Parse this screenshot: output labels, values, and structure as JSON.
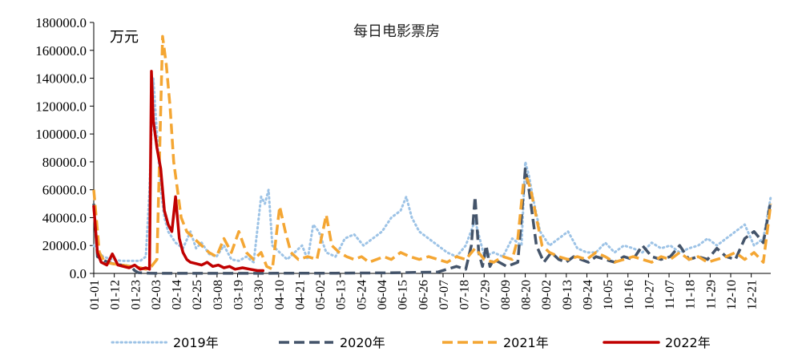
{
  "chart_data": {
    "type": "line",
    "title": "每日电影票房",
    "unit_label": "万元",
    "ylim": [
      0,
      180000
    ],
    "y_ticks": [
      "0.0",
      "20000.0",
      "40000.0",
      "60000.0",
      "80000.0",
      "100000.0",
      "120000.0",
      "140000.0",
      "160000.0",
      "180000.0"
    ],
    "x_ticks": [
      "01-01",
      "01-12",
      "01-23",
      "02-03",
      "02-14",
      "02-25",
      "03-08",
      "03-19",
      "03-30",
      "04-10",
      "04-21",
      "05-02",
      "05-13",
      "05-24",
      "06-04",
      "06-15",
      "06-26",
      "07-07",
      "07-18",
      "07-29",
      "08-09",
      "08-20",
      "09-02",
      "09-13",
      "09-24",
      "10-05",
      "10-16",
      "10-27",
      "11-07",
      "11-18",
      "11-29",
      "12-10",
      "12-21"
    ],
    "legend_position": "bottom",
    "series": [
      {
        "name": "2019年",
        "color": "#9dc3e6",
        "style": "dotted",
        "points": [
          [
            0,
            20000
          ],
          [
            5,
            12000
          ],
          [
            10,
            10000
          ],
          [
            15,
            9000
          ],
          [
            20,
            9000
          ],
          [
            25,
            9000
          ],
          [
            28,
            12000
          ],
          [
            30,
            60000
          ],
          [
            32,
            140000
          ],
          [
            34,
            100000
          ],
          [
            36,
            60000
          ],
          [
            38,
            40000
          ],
          [
            40,
            30000
          ],
          [
            44,
            22000
          ],
          [
            48,
            18000
          ],
          [
            52,
            30000
          ],
          [
            55,
            18000
          ],
          [
            58,
            22000
          ],
          [
            62,
            14000
          ],
          [
            66,
            12000
          ],
          [
            70,
            20000
          ],
          [
            74,
            10000
          ],
          [
            78,
            9000
          ],
          [
            82,
            12000
          ],
          [
            86,
            8000
          ],
          [
            90,
            55000
          ],
          [
            92,
            50000
          ],
          [
            94,
            60000
          ],
          [
            96,
            20000
          ],
          [
            100,
            15000
          ],
          [
            104,
            10000
          ],
          [
            108,
            15000
          ],
          [
            112,
            20000
          ],
          [
            115,
            10000
          ],
          [
            118,
            35000
          ],
          [
            121,
            30000
          ],
          [
            125,
            15000
          ],
          [
            130,
            12000
          ],
          [
            135,
            25000
          ],
          [
            140,
            28000
          ],
          [
            145,
            20000
          ],
          [
            150,
            25000
          ],
          [
            155,
            30000
          ],
          [
            160,
            40000
          ],
          [
            165,
            45000
          ],
          [
            168,
            55000
          ],
          [
            171,
            40000
          ],
          [
            175,
            30000
          ],
          [
            180,
            25000
          ],
          [
            185,
            20000
          ],
          [
            190,
            15000
          ],
          [
            195,
            12000
          ],
          [
            200,
            20000
          ],
          [
            205,
            38000
          ],
          [
            210,
            12000
          ],
          [
            215,
            15000
          ],
          [
            220,
            12000
          ],
          [
            225,
            25000
          ],
          [
            230,
            20000
          ],
          [
            232,
            80000
          ],
          [
            234,
            70000
          ],
          [
            236,
            55000
          ],
          [
            240,
            30000
          ],
          [
            245,
            20000
          ],
          [
            250,
            25000
          ],
          [
            255,
            30000
          ],
          [
            260,
            18000
          ],
          [
            265,
            15000
          ],
          [
            270,
            15000
          ],
          [
            275,
            22000
          ],
          [
            280,
            15000
          ],
          [
            285,
            20000
          ],
          [
            290,
            18000
          ],
          [
            295,
            15000
          ],
          [
            300,
            22000
          ],
          [
            305,
            18000
          ],
          [
            310,
            20000
          ],
          [
            315,
            15000
          ],
          [
            320,
            18000
          ],
          [
            325,
            20000
          ],
          [
            330,
            25000
          ],
          [
            335,
            20000
          ],
          [
            340,
            25000
          ],
          [
            345,
            30000
          ],
          [
            350,
            35000
          ],
          [
            355,
            20000
          ],
          [
            360,
            25000
          ],
          [
            364,
            55000
          ]
        ]
      },
      {
        "name": "2020年",
        "color": "#44546a",
        "style": "dashed",
        "points": [
          [
            0,
            50000
          ],
          [
            2,
            12000
          ],
          [
            6,
            9000
          ],
          [
            10,
            7000
          ],
          [
            15,
            6000
          ],
          [
            20,
            5000
          ],
          [
            22,
            2000
          ],
          [
            24,
            500
          ],
          [
            30,
            100
          ],
          [
            60,
            50
          ],
          [
            100,
            100
          ],
          [
            130,
            200
          ],
          [
            160,
            400
          ],
          [
            185,
            1000
          ],
          [
            190,
            3000
          ],
          [
            195,
            5000
          ],
          [
            200,
            3000
          ],
          [
            203,
            20000
          ],
          [
            205,
            55000
          ],
          [
            207,
            15000
          ],
          [
            209,
            5000
          ],
          [
            211,
            20000
          ],
          [
            213,
            5000
          ],
          [
            215,
            10000
          ],
          [
            218,
            8000
          ],
          [
            222,
            5000
          ],
          [
            228,
            8000
          ],
          [
            232,
            75000
          ],
          [
            234,
            60000
          ],
          [
            236,
            40000
          ],
          [
            238,
            20000
          ],
          [
            242,
            8000
          ],
          [
            246,
            15000
          ],
          [
            250,
            10000
          ],
          [
            254,
            8000
          ],
          [
            258,
            12000
          ],
          [
            262,
            10000
          ],
          [
            266,
            8000
          ],
          [
            270,
            12000
          ],
          [
            275,
            10000
          ],
          [
            280,
            8000
          ],
          [
            285,
            12000
          ],
          [
            290,
            10000
          ],
          [
            295,
            20000
          ],
          [
            300,
            12000
          ],
          [
            305,
            10000
          ],
          [
            310,
            12000
          ],
          [
            315,
            20000
          ],
          [
            320,
            10000
          ],
          [
            325,
            12000
          ],
          [
            330,
            10000
          ],
          [
            335,
            18000
          ],
          [
            340,
            12000
          ],
          [
            345,
            10000
          ],
          [
            350,
            25000
          ],
          [
            355,
            30000
          ],
          [
            360,
            22000
          ],
          [
            364,
            52000
          ]
        ]
      },
      {
        "name": "2021年",
        "color": "#f4a633",
        "style": "dashed",
        "points": [
          [
            0,
            60000
          ],
          [
            3,
            15000
          ],
          [
            6,
            8000
          ],
          [
            10,
            7000
          ],
          [
            15,
            6000
          ],
          [
            20,
            5000
          ],
          [
            25,
            4000
          ],
          [
            28,
            3000
          ],
          [
            31,
            5000
          ],
          [
            34,
            10000
          ],
          [
            37,
            170000
          ],
          [
            39,
            150000
          ],
          [
            41,
            120000
          ],
          [
            43,
            80000
          ],
          [
            45,
            60000
          ],
          [
            47,
            40000
          ],
          [
            50,
            30000
          ],
          [
            54,
            25000
          ],
          [
            58,
            20000
          ],
          [
            62,
            15000
          ],
          [
            66,
            12000
          ],
          [
            70,
            25000
          ],
          [
            74,
            15000
          ],
          [
            78,
            30000
          ],
          [
            82,
            15000
          ],
          [
            86,
            10000
          ],
          [
            90,
            15000
          ],
          [
            93,
            5000
          ],
          [
            96,
            3000
          ],
          [
            100,
            48000
          ],
          [
            103,
            30000
          ],
          [
            106,
            15000
          ],
          [
            110,
            10000
          ],
          [
            115,
            12000
          ],
          [
            120,
            10000
          ],
          [
            125,
            42000
          ],
          [
            128,
            20000
          ],
          [
            132,
            15000
          ],
          [
            136,
            12000
          ],
          [
            140,
            10000
          ],
          [
            144,
            12000
          ],
          [
            148,
            8000
          ],
          [
            152,
            10000
          ],
          [
            156,
            12000
          ],
          [
            160,
            10000
          ],
          [
            165,
            15000
          ],
          [
            170,
            12000
          ],
          [
            175,
            10000
          ],
          [
            180,
            12000
          ],
          [
            185,
            10000
          ],
          [
            190,
            8000
          ],
          [
            195,
            12000
          ],
          [
            200,
            10000
          ],
          [
            205,
            18000
          ],
          [
            210,
            10000
          ],
          [
            215,
            8000
          ],
          [
            220,
            12000
          ],
          [
            225,
            10000
          ],
          [
            228,
            25000
          ],
          [
            231,
            65000
          ],
          [
            233,
            68000
          ],
          [
            235,
            60000
          ],
          [
            238,
            40000
          ],
          [
            241,
            20000
          ],
          [
            245,
            15000
          ],
          [
            250,
            12000
          ],
          [
            255,
            10000
          ],
          [
            260,
            12000
          ],
          [
            265,
            10000
          ],
          [
            270,
            15000
          ],
          [
            275,
            12000
          ],
          [
            280,
            8000
          ],
          [
            285,
            10000
          ],
          [
            290,
            12000
          ],
          [
            295,
            10000
          ],
          [
            300,
            8000
          ],
          [
            305,
            12000
          ],
          [
            310,
            10000
          ],
          [
            315,
            15000
          ],
          [
            320,
            10000
          ],
          [
            325,
            12000
          ],
          [
            330,
            8000
          ],
          [
            335,
            10000
          ],
          [
            340,
            12000
          ],
          [
            345,
            15000
          ],
          [
            350,
            10000
          ],
          [
            355,
            15000
          ],
          [
            360,
            8000
          ],
          [
            364,
            50000
          ]
        ]
      },
      {
        "name": "2022年",
        "color": "#c00000",
        "style": "solid",
        "points": [
          [
            0,
            48000
          ],
          [
            2,
            15000
          ],
          [
            4,
            8000
          ],
          [
            7,
            6000
          ],
          [
            10,
            14000
          ],
          [
            13,
            6000
          ],
          [
            16,
            5000
          ],
          [
            19,
            4000
          ],
          [
            22,
            6000
          ],
          [
            25,
            3000
          ],
          [
            28,
            4000
          ],
          [
            30,
            3000
          ],
          [
            31,
            145000
          ],
          [
            32,
            110000
          ],
          [
            34,
            90000
          ],
          [
            36,
            75000
          ],
          [
            38,
            45000
          ],
          [
            40,
            35000
          ],
          [
            42,
            30000
          ],
          [
            44,
            55000
          ],
          [
            46,
            25000
          ],
          [
            48,
            15000
          ],
          [
            50,
            10000
          ],
          [
            52,
            8000
          ],
          [
            55,
            7000
          ],
          [
            58,
            6000
          ],
          [
            61,
            8000
          ],
          [
            64,
            5000
          ],
          [
            67,
            6000
          ],
          [
            70,
            4000
          ],
          [
            73,
            5000
          ],
          [
            76,
            3000
          ],
          [
            80,
            4000
          ],
          [
            84,
            3000
          ],
          [
            88,
            2000
          ],
          [
            91,
            2000
          ]
        ]
      }
    ]
  }
}
